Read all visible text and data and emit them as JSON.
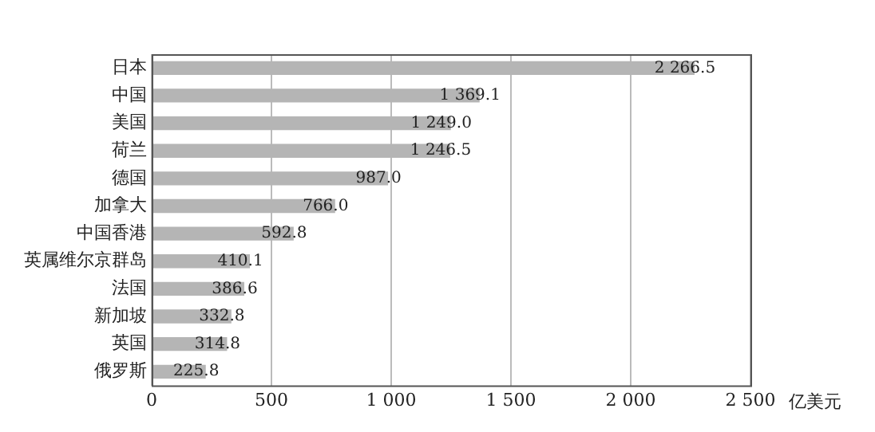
{
  "chart_data": {
    "type": "bar",
    "orientation": "horizontal",
    "xlabel": "亿美元",
    "categories": [
      "日本",
      "中国",
      "美国",
      "荷兰",
      "德国",
      "加拿大",
      "中国香港",
      "英属维尔京群岛",
      "法国",
      "新加坡",
      "英国",
      "俄罗斯"
    ],
    "values": [
      2266.5,
      1369.1,
      1249.0,
      1246.5,
      987.0,
      766.0,
      592.8,
      410.1,
      386.6,
      332.8,
      314.8,
      225.8
    ],
    "value_labels": [
      "2 266.5",
      "1 369.1",
      "1 249.0",
      "1 246.5",
      "987.0",
      "766.0",
      "592.8",
      "410.1",
      "386.6",
      "332.8",
      "314.8",
      "225.8"
    ],
    "color": "#b5b5b5",
    "xlim": [
      0,
      2500
    ],
    "xticks": [
      0,
      500,
      {
        "value": 1000,
        "label": "1 000"
      },
      {
        "value": 1500,
        "label": "1 500"
      },
      {
        "value": 2000,
        "label": "2 000"
      },
      {
        "value": 2500,
        "label": "2 500"
      }
    ],
    "grid": "x",
    "legend": false
  }
}
